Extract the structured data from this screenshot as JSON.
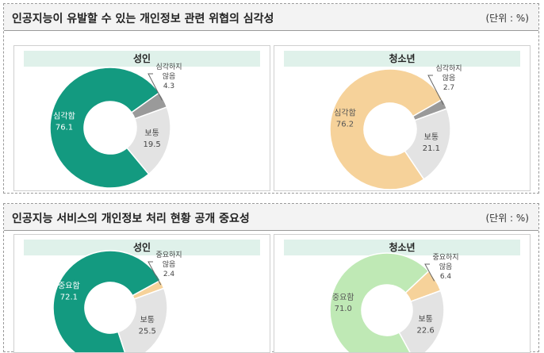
{
  "charts": [
    {
      "title": "인공지능이 유발할 수 있는 개인정보 관련 위협의 심각성",
      "unit": "(단위 : %)",
      "panels": [
        {
          "label": "성인",
          "colors": [
            "#139a80",
            "#e3e3e3",
            "#9a9a9a"
          ]
        },
        {
          "label": "청소년",
          "colors": [
            "#f6d29a",
            "#e3e3e3",
            "#9a9a9a"
          ]
        }
      ]
    },
    {
      "title": "인공지능 서비스의 개인정보 처리 현황 공개 중요성",
      "unit": "(단위 : %)",
      "panels": [
        {
          "label": "성인",
          "colors": [
            "#139a80",
            "#e3e3e3",
            "#f6d29a"
          ]
        },
        {
          "label": "청소년",
          "colors": [
            "#bfe9b5",
            "#e3e3e3",
            "#f6d29a"
          ]
        }
      ]
    }
  ],
  "chart_data": [
    {
      "type": "pie",
      "title": "인공지능이 유발할 수 있는 개인정보 관련 위협의 심각성 - 성인",
      "categories": [
        "심각함",
        "보통",
        "심각하지 않음"
      ],
      "values": [
        76.1,
        19.5,
        4.3
      ],
      "unit": "%"
    },
    {
      "type": "pie",
      "title": "인공지능이 유발할 수 있는 개인정보 관련 위협의 심각성 - 청소년",
      "categories": [
        "심각함",
        "보통",
        "심각하지 않음"
      ],
      "values": [
        76.2,
        21.1,
        2.7
      ],
      "unit": "%"
    },
    {
      "type": "pie",
      "title": "인공지능 서비스의 개인정보 처리 현황 공개 중요성 - 성인",
      "categories": [
        "중요함",
        "보통",
        "중요하지 않음"
      ],
      "values": [
        72.1,
        25.5,
        2.4
      ],
      "unit": "%"
    },
    {
      "type": "pie",
      "title": "인공지능 서비스의 개인정보 처리 현황 공개 중요성 - 청소년",
      "categories": [
        "중요함",
        "보통",
        "중요하지 않음"
      ],
      "values": [
        71.0,
        22.6,
        6.4
      ],
      "unit": "%"
    }
  ]
}
